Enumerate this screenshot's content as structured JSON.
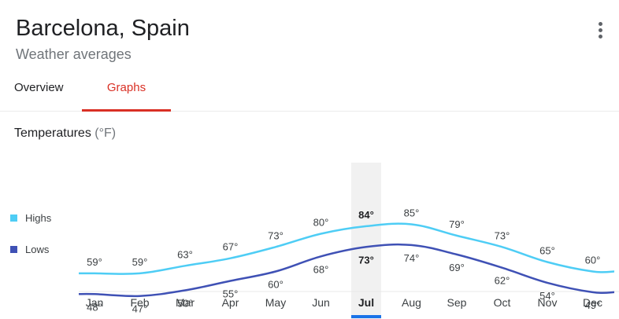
{
  "header": {
    "title": "Barcelona, Spain",
    "subtitle": "Weather averages"
  },
  "tabs": [
    {
      "label": "Overview",
      "active": false
    },
    {
      "label": "Graphs",
      "active": true
    }
  ],
  "section": {
    "title": "Temperatures",
    "unit": "(°F)"
  },
  "legend": {
    "highs": "Highs",
    "lows": "Lows"
  },
  "colors": {
    "highs": "#4ecdf5",
    "lows": "#3f51b5",
    "accent": "#d93025",
    "selected_bar": "#1a73e8"
  },
  "chart_data": {
    "type": "line",
    "categories": [
      "Jan",
      "Feb",
      "Mar",
      "Apr",
      "May",
      "Jun",
      "Jul",
      "Aug",
      "Sep",
      "Oct",
      "Nov",
      "Dec"
    ],
    "series": [
      {
        "name": "Highs",
        "values": [
          59,
          59,
          63,
          67,
          73,
          80,
          84,
          85,
          79,
          73,
          65,
          60
        ]
      },
      {
        "name": "Lows",
        "values": [
          48,
          47,
          50,
          55,
          60,
          68,
          73,
          74,
          69,
          62,
          54,
          49
        ]
      }
    ],
    "value_labels": {
      "Highs": [
        "59°",
        "59°",
        "63°",
        "67°",
        "73°",
        "80°",
        "84°",
        "85°",
        "79°",
        "73°",
        "65°",
        "60°"
      ],
      "Lows": [
        "48°",
        "47°",
        "50°",
        "55°",
        "60°",
        "68°",
        "73°",
        "74°",
        "69°",
        "62°",
        "54°",
        "49°"
      ]
    },
    "selected": "Jul",
    "legend": "left",
    "grid": false
  }
}
